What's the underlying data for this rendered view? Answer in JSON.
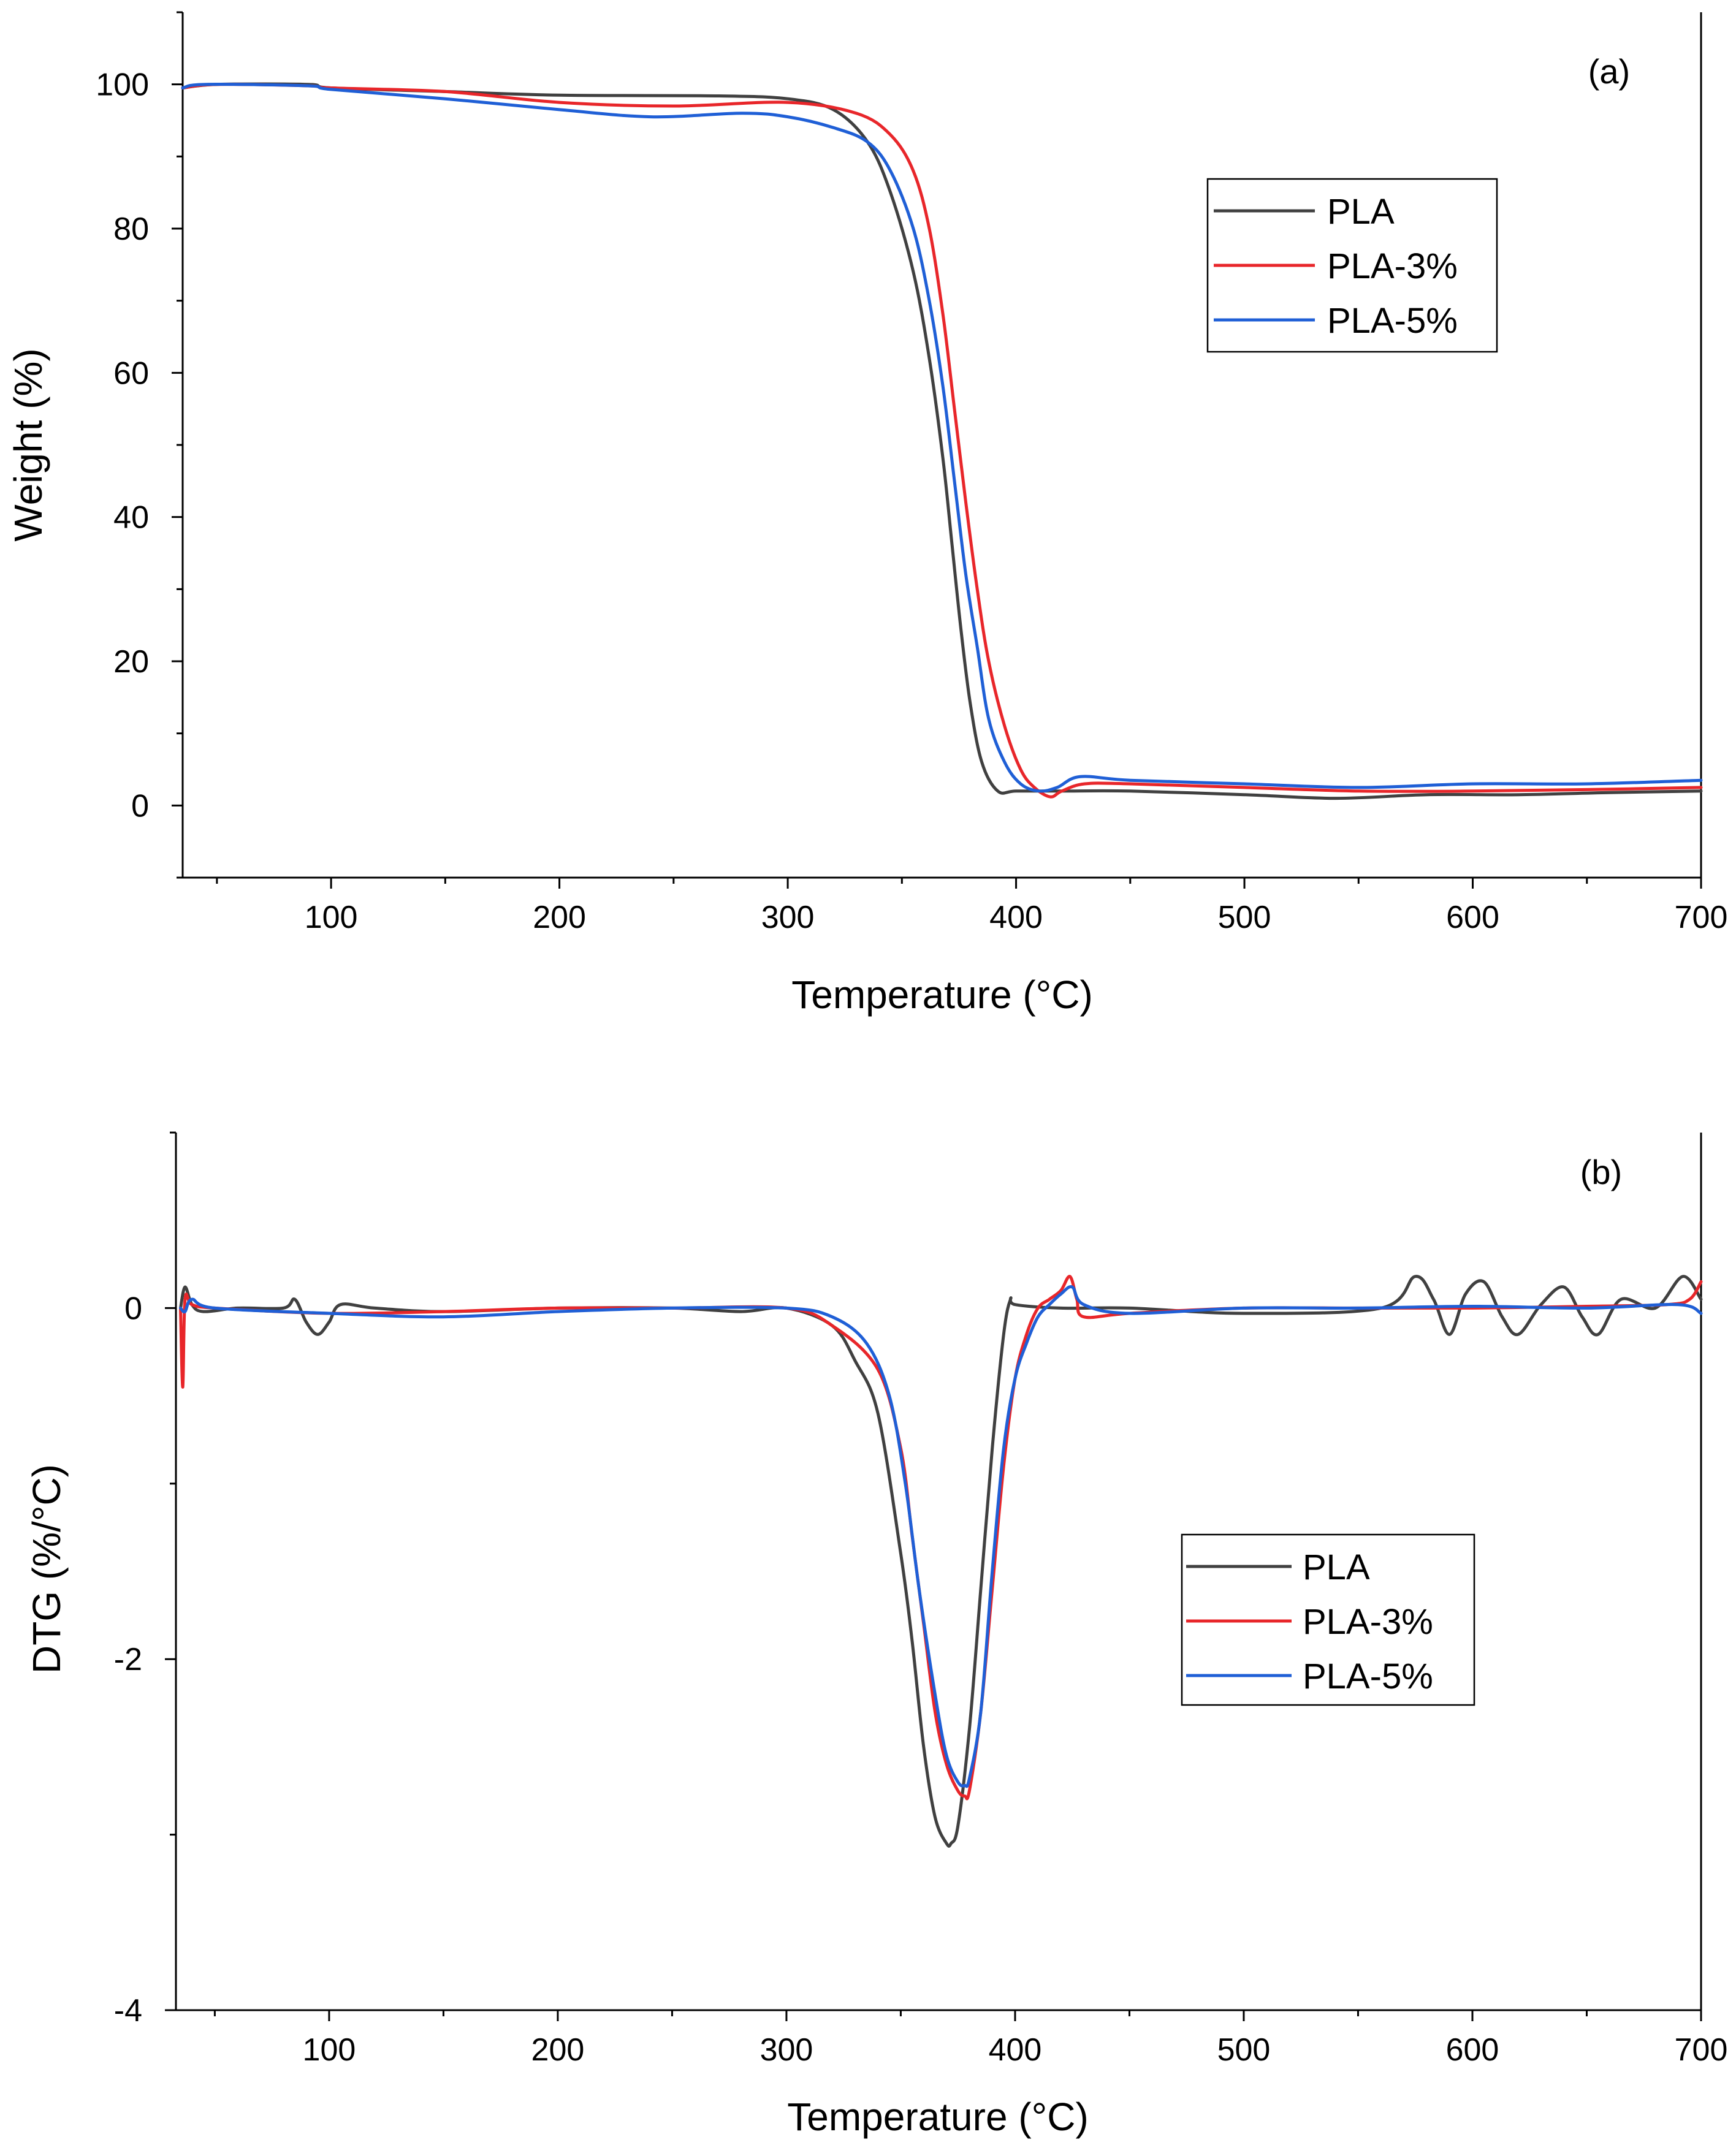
{
  "chart_data": [
    {
      "id": "tga",
      "type": "line",
      "panel_label": "(a)",
      "xlabel": "Temperature (°C)",
      "ylabel": "Weight (%)",
      "xlim": [
        35,
        700
      ],
      "ylim": [
        -10,
        110
      ],
      "xticks": [
        100,
        200,
        300,
        400,
        500,
        600,
        700
      ],
      "yticks": [
        0,
        20,
        40,
        60,
        80,
        100
      ],
      "legend_position": "top-right",
      "series": [
        {
          "name": "PLA",
          "color": "#404040",
          "x": [
            35,
            50,
            90,
            100,
            150,
            200,
            270,
            300,
            320,
            335,
            345,
            355,
            362,
            368,
            372,
            376,
            380,
            385,
            392,
            400,
            420,
            450,
            500,
            540,
            580,
            620,
            660,
            700
          ],
          "y": [
            99.5,
            100,
            100,
            99.5,
            99,
            98.5,
            98.4,
            98,
            96.5,
            92,
            85,
            74,
            62,
            48,
            36,
            24,
            14,
            6,
            2,
            2,
            2,
            2,
            1.5,
            1,
            1.5,
            1.5,
            1.8,
            2
          ]
        },
        {
          "name": "PLA-3%",
          "color": "#e8262a",
          "x": [
            35,
            50,
            90,
            100,
            150,
            200,
            250,
            300,
            330,
            345,
            355,
            362,
            368,
            373,
            378,
            383,
            388,
            395,
            402,
            408,
            415,
            420,
            430,
            450,
            500,
            550,
            600,
            650,
            700
          ],
          "y": [
            99.5,
            100,
            99.8,
            99.5,
            99,
            97.5,
            97,
            97.5,
            96,
            93,
            88,
            80,
            68,
            55,
            42,
            30,
            20,
            11,
            5,
            2.5,
            1.2,
            2,
            3,
            3,
            2.5,
            2,
            2,
            2.2,
            2.5
          ]
        },
        {
          "name": "PLA-5%",
          "color": "#1f5fd6",
          "x": [
            35,
            45,
            90,
            100,
            150,
            200,
            240,
            280,
            300,
            320,
            335,
            345,
            355,
            362,
            368,
            373,
            378,
            383,
            388,
            395,
            402,
            410,
            418,
            428,
            450,
            500,
            550,
            600,
            650,
            700
          ],
          "y": [
            99.5,
            100,
            99.8,
            99.3,
            98,
            96.5,
            95.5,
            96,
            95.5,
            94,
            92,
            88,
            80,
            70,
            58,
            45,
            32,
            22,
            12,
            6,
            3,
            2,
            2.5,
            4,
            3.5,
            3,
            2.5,
            3,
            3,
            3.5
          ]
        }
      ]
    },
    {
      "id": "dtg",
      "type": "line",
      "panel_label": "(b)",
      "xlabel": "Temperature (°C)",
      "ylabel": "DTG (%/°C)",
      "xlim": [
        33,
        700
      ],
      "ylim": [
        -4,
        1
      ],
      "xticks": [
        100,
        200,
        300,
        400,
        500,
        600,
        700
      ],
      "yticks": [
        0,
        -2,
        -4
      ],
      "legend_position": "center-right",
      "series": [
        {
          "name": "PLA",
          "color": "#404040",
          "x": [
            35,
            37,
            40,
            45,
            60,
            80,
            85,
            90,
            95,
            100,
            105,
            120,
            150,
            200,
            250,
            280,
            300,
            320,
            330,
            340,
            350,
            355,
            360,
            365,
            370,
            372,
            375,
            380,
            385,
            390,
            395,
            398,
            400,
            420,
            450,
            500,
            560,
            575,
            583,
            590,
            597,
            605,
            613,
            620,
            630,
            640,
            648,
            655,
            665,
            680,
            692,
            700
          ],
          "y": [
            0,
            0.12,
            0.02,
            -0.02,
            0,
            0,
            0.05,
            -0.08,
            -0.15,
            -0.08,
            0.02,
            0,
            -0.02,
            0,
            0,
            -0.02,
            0,
            -0.1,
            -0.3,
            -0.6,
            -1.4,
            -1.9,
            -2.5,
            -2.9,
            -3.05,
            -3.05,
            -2.95,
            -2.4,
            -1.6,
            -0.8,
            -0.15,
            0.05,
            0.02,
            0,
            0,
            -0.03,
            0,
            0.18,
            0.05,
            -0.15,
            0.08,
            0.15,
            -0.05,
            -0.15,
            0.02,
            0.12,
            -0.05,
            -0.15,
            0.05,
            0,
            0.18,
            0.05
          ]
        },
        {
          "name": "PLA-3%",
          "color": "#e8262a",
          "x": [
            35,
            36,
            37,
            40,
            50,
            100,
            150,
            200,
            250,
            300,
            320,
            340,
            350,
            355,
            360,
            365,
            370,
            375,
            378,
            380,
            385,
            390,
            395,
            400,
            405,
            410,
            415,
            420,
            424,
            427,
            430,
            450,
            500,
            550,
            600,
            650,
            685,
            695,
            700
          ],
          "y": [
            0,
            -0.45,
            0.05,
            0.02,
            0,
            -0.03,
            -0.02,
            0,
            0,
            0,
            -0.1,
            -0.35,
            -0.8,
            -1.3,
            -1.8,
            -2.3,
            -2.6,
            -2.75,
            -2.78,
            -2.75,
            -2.3,
            -1.6,
            -0.9,
            -0.4,
            -0.15,
            0,
            0.05,
            0.1,
            0.18,
            0.05,
            -0.05,
            -0.03,
            0,
            0,
            0,
            0.01,
            0.02,
            0.05,
            0.15
          ]
        },
        {
          "name": "PLA-5%",
          "color": "#1f5fd6",
          "x": [
            35,
            37,
            40,
            50,
            100,
            150,
            200,
            250,
            300,
            320,
            335,
            345,
            352,
            358,
            365,
            370,
            375,
            378,
            380,
            385,
            390,
            395,
            400,
            405,
            410,
            415,
            420,
            425,
            430,
            450,
            500,
            550,
            600,
            650,
            690,
            700
          ],
          "y": [
            0,
            -0.02,
            0.05,
            0,
            -0.03,
            -0.05,
            -0.02,
            0,
            0,
            -0.05,
            -0.2,
            -0.5,
            -1.0,
            -1.6,
            -2.2,
            -2.55,
            -2.7,
            -2.72,
            -2.68,
            -2.3,
            -1.5,
            -0.8,
            -0.4,
            -0.2,
            -0.05,
            0.02,
            0.08,
            0.12,
            0.02,
            -0.03,
            0,
            0,
            0.01,
            0,
            0.02,
            -0.03
          ]
        }
      ]
    }
  ]
}
